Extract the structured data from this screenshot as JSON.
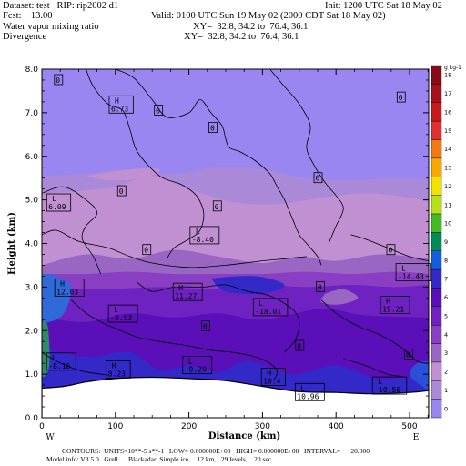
{
  "header": {
    "dataset": "Dataset: test   RIP: rip2002 d1",
    "init": "Init: 1200 UTC Sat 18 May 02",
    "fcst": "Fcst:    13.00",
    "valid": "Valid: 0100 UTC Sun 19 May 02 (2000 CDT Sat 18 May 02)",
    "field1_name": "Water vapor mixing ratio",
    "field1_xy": "XY=  32.8, 34.2 to  76.4, 36.1",
    "field2_name": "Divergence",
    "field2_xy": "XY=  32.8, 34.2 to  76.4, 36.1"
  },
  "footer": {
    "contours": "CONTOURS:  UNITS=10**-5 s**-1   LOW= 0.000000E+00   HIGH= 0.000000E+00   INTERVAL=      20.000",
    "model_info": "Model info: V3.5.0   Grell      Blackadar  Simple ice     12 km,   29 levels,    20 sec"
  },
  "chart_data": {
    "type": "heatmap",
    "xlabel": "Distance (km)",
    "ylabel": "Height (km)",
    "x_ticks": [
      0,
      100,
      200,
      300,
      400,
      500
    ],
    "y_ticks": [
      "0.0",
      "1.0",
      "2.0",
      "3.0",
      "4.0",
      "5.0",
      "6.0",
      "7.0",
      "8.0"
    ],
    "xlim": [
      0,
      526
    ],
    "ylim": [
      0,
      8
    ],
    "x_end_labels": {
      "left": "W",
      "right": "E"
    },
    "colorbar": {
      "units": "g kg-1",
      "levels": [
        0,
        1,
        2,
        3,
        4,
        5,
        6,
        7,
        8,
        9,
        10,
        11,
        12,
        13,
        14,
        15,
        16,
        17,
        18
      ],
      "colors": [
        "#9a86f0",
        "#aa8ad8",
        "#c090d2",
        "#9a66c4",
        "#8a3ec4",
        "#6f22c2",
        "#5a0fb8",
        "#3328c8",
        "#0f5fe0",
        "#008c5a",
        "#44bb22",
        "#b8e016",
        "#f2e200",
        "#f8a800",
        "#f07a10",
        "#e03030",
        "#c81a1a",
        "#a81020",
        "#880a18"
      ]
    },
    "bands": [
      {
        "name": "level-1",
        "color": "#9a86f0",
        "top": [
          [
            0,
            8.0
          ],
          [
            526,
            8.0
          ]
        ]
      },
      {
        "name": "level-2",
        "color": "#aa8ad8",
        "top": [
          [
            0,
            5.55
          ],
          [
            60,
            5.6
          ],
          [
            120,
            5.7
          ],
          [
            180,
            5.6
          ],
          [
            240,
            5.75
          ],
          [
            300,
            5.7
          ],
          [
            360,
            5.5
          ],
          [
            420,
            5.45
          ],
          [
            480,
            5.5
          ],
          [
            526,
            5.45
          ]
        ]
      },
      {
        "name": "level-3",
        "color": "#c090d2",
        "top": [
          [
            0,
            5.15
          ],
          [
            50,
            5.2
          ],
          [
            100,
            5.3
          ],
          [
            150,
            5.55
          ],
          [
            200,
            5.25
          ],
          [
            260,
            4.95
          ],
          [
            320,
            4.9
          ],
          [
            380,
            5.05
          ],
          [
            440,
            5.15
          ],
          [
            500,
            5.05
          ],
          [
            526,
            4.95
          ]
        ]
      },
      {
        "name": "level-4",
        "color": "#9a66c4",
        "top": [
          [
            0,
            3.5
          ],
          [
            60,
            3.75
          ],
          [
            120,
            3.65
          ],
          [
            180,
            3.85
          ],
          [
            240,
            3.7
          ],
          [
            300,
            3.55
          ],
          [
            350,
            3.7
          ],
          [
            400,
            3.6
          ],
          [
            460,
            3.75
          ],
          [
            526,
            3.65
          ]
        ]
      },
      {
        "name": "level-5",
        "color": "#8a3ec4",
        "top": [
          [
            0,
            3.3
          ],
          [
            60,
            3.3
          ],
          [
            120,
            3.35
          ],
          [
            180,
            3.3
          ],
          [
            240,
            3.3
          ],
          [
            300,
            3.3
          ],
          [
            360,
            3.35
          ],
          [
            420,
            3.3
          ],
          [
            480,
            3.35
          ],
          [
            526,
            3.3
          ]
        ]
      },
      {
        "name": "level-6",
        "color": "#6f22c2",
        "top": [
          [
            0,
            3.0
          ],
          [
            80,
            2.95
          ],
          [
            160,
            3.0
          ],
          [
            240,
            2.95
          ],
          [
            300,
            3.05
          ],
          [
            360,
            3.0
          ],
          [
            420,
            3.05
          ],
          [
            480,
            3.0
          ],
          [
            526,
            3.05
          ]
        ]
      },
      {
        "name": "level-7",
        "color": "#5a0fb8",
        "top": [
          [
            0,
            2.3
          ],
          [
            60,
            2.2
          ],
          [
            120,
            2.4
          ],
          [
            180,
            2.3
          ],
          [
            240,
            2.4
          ],
          [
            300,
            2.25
          ],
          [
            380,
            2.5
          ],
          [
            440,
            2.35
          ],
          [
            526,
            2.3
          ]
        ]
      },
      {
        "name": "level-8",
        "color": "#3328c8",
        "top": [
          [
            0,
            1.6
          ],
          [
            60,
            1.4
          ],
          [
            120,
            1.5
          ],
          [
            160,
            1.1
          ],
          [
            200,
            1.2
          ],
          [
            240,
            1.05
          ],
          [
            280,
            1.3
          ],
          [
            340,
            1.0
          ],
          [
            400,
            1.2
          ],
          [
            460,
            0.9
          ],
          [
            526,
            1.0
          ]
        ]
      }
    ],
    "extra_patches": [
      {
        "name": "pale-blob-left",
        "color": "#c090d2",
        "points": [
          [
            60,
            5.55
          ],
          [
            120,
            5.7
          ],
          [
            160,
            5.7
          ],
          [
            140,
            5.5
          ],
          [
            90,
            5.45
          ]
        ]
      },
      {
        "name": "high-moisture-core-left",
        "color": "#2f6ad8",
        "points": [
          [
            0,
            3.3
          ],
          [
            20,
            3.25
          ],
          [
            40,
            3.0
          ],
          [
            30,
            2.4
          ],
          [
            10,
            2.2
          ],
          [
            0,
            2.3
          ]
        ]
      },
      {
        "name": "blue-pocket-mid",
        "color": "#3328c8",
        "points": [
          [
            230,
            3.2
          ],
          [
            290,
            3.25
          ],
          [
            330,
            3.05
          ],
          [
            300,
            2.85
          ],
          [
            250,
            2.9
          ]
        ]
      },
      {
        "name": "light-pocket-mid",
        "color": "#9a66c4",
        "points": [
          [
            385,
            2.85
          ],
          [
            410,
            2.95
          ],
          [
            430,
            2.75
          ],
          [
            405,
            2.6
          ],
          [
            380,
            2.65
          ]
        ]
      },
      {
        "name": "blue-pocket-right",
        "color": "#2a50d8",
        "points": [
          [
            526,
            1.3
          ],
          [
            510,
            1.25
          ],
          [
            500,
            1.0
          ],
          [
            515,
            0.75
          ],
          [
            526,
            0.7
          ]
        ]
      },
      {
        "name": "green-edge-left",
        "color": "#2f8a6a",
        "points": [
          [
            0,
            2.2
          ],
          [
            8,
            2.1
          ],
          [
            10,
            1.2
          ],
          [
            0,
            1.0
          ]
        ]
      }
    ],
    "terrain": [
      [
        0,
        0.68
      ],
      [
        30,
        0.72
      ],
      [
        60,
        0.82
      ],
      [
        100,
        0.9
      ],
      [
        150,
        0.93
      ],
      [
        200,
        0.9
      ],
      [
        250,
        0.85
      ],
      [
        300,
        0.72
      ],
      [
        350,
        0.6
      ],
      [
        400,
        0.58
      ],
      [
        450,
        0.55
      ],
      [
        500,
        0.58
      ],
      [
        526,
        0.62
      ]
    ],
    "contours": [
      {
        "name": "contour-a",
        "points": [
          [
            0,
            5.15
          ],
          [
            30,
            5.3
          ],
          [
            60,
            5.0
          ],
          [
            75,
            4.7
          ],
          [
            60,
            4.4
          ],
          [
            55,
            4.1
          ],
          [
            70,
            3.7
          ],
          [
            80,
            3.3
          ]
        ]
      },
      {
        "name": "contour-b",
        "points": [
          [
            60,
            8.0
          ],
          [
            70,
            7.6
          ],
          [
            90,
            7.2
          ],
          [
            110,
            7.05
          ],
          [
            120,
            6.6
          ],
          [
            130,
            6.1
          ],
          [
            160,
            5.55
          ],
          [
            190,
            5.35
          ],
          [
            210,
            5.1
          ],
          [
            220,
            4.7
          ],
          [
            215,
            4.3
          ],
          [
            200,
            4.1
          ],
          [
            180,
            3.9
          ],
          [
            170,
            3.65
          ]
        ]
      },
      {
        "name": "contour-c",
        "points": [
          [
            100,
            8.0
          ],
          [
            125,
            7.8
          ],
          [
            150,
            7.3
          ],
          [
            170,
            6.9
          ],
          [
            200,
            7.0
          ],
          [
            215,
            7.3
          ],
          [
            230,
            7.0
          ],
          [
            245,
            6.7
          ],
          [
            250,
            6.4
          ],
          [
            255,
            6.2
          ],
          [
            270,
            6.1
          ],
          [
            290,
            5.9
          ],
          [
            310,
            5.6
          ],
          [
            320,
            5.3
          ],
          [
            330,
            5.0
          ],
          [
            340,
            4.6
          ],
          [
            350,
            4.2
          ],
          [
            360,
            4.0
          ],
          [
            375,
            3.7
          ],
          [
            380,
            3.5
          ]
        ]
      },
      {
        "name": "contour-d",
        "points": [
          [
            310,
            8.0
          ],
          [
            330,
            7.6
          ],
          [
            350,
            7.2
          ],
          [
            365,
            6.7
          ],
          [
            360,
            6.2
          ],
          [
            370,
            5.8
          ],
          [
            385,
            5.4
          ],
          [
            400,
            5.1
          ],
          [
            410,
            4.8
          ],
          [
            400,
            4.4
          ],
          [
            390,
            4.0
          ]
        ]
      },
      {
        "name": "contour-e",
        "points": [
          [
            0,
            4.2
          ],
          [
            20,
            4.3
          ],
          [
            50,
            4.05
          ],
          [
            90,
            3.9
          ],
          [
            120,
            3.7
          ],
          [
            150,
            3.55
          ],
          [
            200,
            3.45
          ],
          [
            250,
            3.5
          ],
          [
            300,
            3.6
          ],
          [
            330,
            3.65
          ],
          [
            360,
            3.7
          ]
        ]
      },
      {
        "name": "contour-f",
        "points": [
          [
            420,
            4.2
          ],
          [
            440,
            4.1
          ],
          [
            470,
            3.9
          ],
          [
            500,
            3.7
          ],
          [
            526,
            3.6
          ]
        ]
      },
      {
        "name": "contour-g",
        "points": [
          [
            130,
            3.1
          ],
          [
            150,
            2.9
          ],
          [
            180,
            3.0
          ],
          [
            220,
            3.0
          ],
          [
            250,
            3.05
          ],
          [
            280,
            2.9
          ],
          [
            310,
            2.8
          ],
          [
            340,
            2.5
          ],
          [
            350,
            2.2
          ],
          [
            345,
            1.8
          ],
          [
            330,
            1.5
          ]
        ]
      },
      {
        "name": "contour-h",
        "points": [
          [
            40,
            2.7
          ],
          [
            60,
            2.4
          ],
          [
            80,
            2.2
          ],
          [
            100,
            2.05
          ],
          [
            130,
            1.85
          ],
          [
            160,
            1.75
          ],
          [
            200,
            1.65
          ],
          [
            230,
            1.55
          ],
          [
            260,
            1.5
          ],
          [
            290,
            1.4
          ],
          [
            310,
            1.25
          ],
          [
            320,
            1.05
          ],
          [
            315,
            0.85
          ]
        ]
      },
      {
        "name": "contour-i",
        "points": [
          [
            380,
            2.7
          ],
          [
            400,
            2.4
          ],
          [
            430,
            2.1
          ],
          [
            460,
            1.9
          ],
          [
            490,
            1.6
          ],
          [
            510,
            1.3
          ],
          [
            526,
            1.25
          ]
        ]
      },
      {
        "name": "contour-j",
        "points": [
          [
            0,
            1.5
          ],
          [
            20,
            1.3
          ],
          [
            40,
            1.15
          ],
          [
            60,
            1.05
          ],
          [
            90,
            0.98
          ]
        ]
      },
      {
        "name": "contour-k",
        "points": [
          [
            410,
            1.35
          ],
          [
            440,
            1.2
          ],
          [
            470,
            1.0
          ],
          [
            490,
            0.95
          ]
        ]
      }
    ],
    "annotations": [
      {
        "text": "0",
        "x": 22,
        "y": 7.75
      },
      {
        "text": "0",
        "x": 158,
        "y": 7.05
      },
      {
        "text": "0",
        "x": 232,
        "y": 6.65
      },
      {
        "text": "0",
        "x": 375,
        "y": 5.5
      },
      {
        "text": "0",
        "x": 488,
        "y": 7.35
      },
      {
        "text": "0",
        "x": 108,
        "y": 5.2
      },
      {
        "text": "0",
        "x": 238,
        "y": 4.85
      },
      {
        "text": "0",
        "x": 142,
        "y": 3.85
      },
      {
        "text": "0",
        "x": 474,
        "y": 3.85
      },
      {
        "text": "0",
        "x": 378,
        "y": 3.0
      },
      {
        "text": "0",
        "x": 222,
        "y": 2.1
      },
      {
        "text": "0",
        "x": 350,
        "y": 1.65
      },
      {
        "text": "0",
        "x": 498,
        "y": 1.45
      },
      {
        "text": "H",
        "x": 94,
        "y": 7.2,
        "value": "6.73",
        "extremum": true
      },
      {
        "text": "L",
        "x": 9,
        "y": 4.95,
        "value": "6.09",
        "extremum": true
      },
      {
        "text": "L",
        "x": 204,
        "y": 4.2,
        "value": "-8.40",
        "extremum": true
      },
      {
        "text": "H",
        "x": 20,
        "y": 3.0,
        "value": "12.03",
        "extremum": true
      },
      {
        "text": "H",
        "x": 181,
        "y": 2.9,
        "value": "11.27",
        "extremum": true
      },
      {
        "text": "L",
        "x": 93,
        "y": 2.4,
        "value": "-9.53",
        "extremum": true
      },
      {
        "text": "L",
        "x": 290,
        "y": 2.55,
        "value": "-18.01",
        "extremum": true
      },
      {
        "text": "L",
        "x": 484,
        "y": 3.35,
        "value": "-14.43",
        "extremum": true
      },
      {
        "text": "H",
        "x": 463,
        "y": 2.6,
        "value": "19.21",
        "extremum": true
      },
      {
        "text": "L",
        "x": 9,
        "y": 1.3,
        "value": "-8.16",
        "extremum": true
      },
      {
        "text": "H",
        "x": 90,
        "y": 1.12,
        "value": "8.23",
        "extremum": true
      },
      {
        "text": "L",
        "x": 194,
        "y": 1.22,
        "value": "-9.29",
        "extremum": true
      },
      {
        "text": "H",
        "x": 301,
        "y": 0.95,
        "value": "10.4",
        "extremum": true
      },
      {
        "text": "L",
        "x": 347,
        "y": 0.6,
        "value": "10.96",
        "extremum": true
      },
      {
        "text": "L",
        "x": 452,
        "y": 0.75,
        "value": "-10.56",
        "extremum": true
      }
    ]
  }
}
